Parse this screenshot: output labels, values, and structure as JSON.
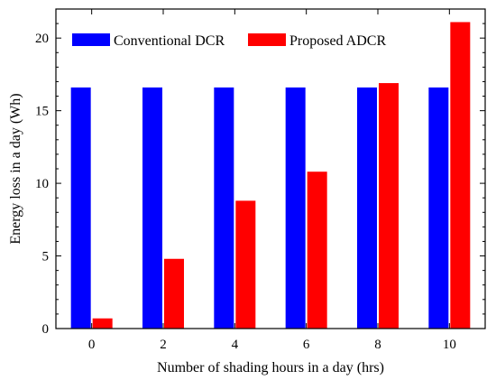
{
  "chart_data": {
    "type": "bar",
    "categories": [
      "0",
      "2",
      "4",
      "6",
      "8",
      "10"
    ],
    "series": [
      {
        "name": "Conventional DCR",
        "values": [
          16.6,
          16.6,
          16.6,
          16.6,
          16.6,
          16.6
        ],
        "color": "#0000ff"
      },
      {
        "name": "Proposed ADCR",
        "values": [
          0.7,
          4.8,
          8.8,
          10.8,
          16.9,
          21.1
        ],
        "color": "#ff0000"
      }
    ],
    "title": "",
    "xlabel": "Number of shading hours in a day (hrs)",
    "ylabel": "Energy loss in a day (Wh)",
    "ylim": [
      0,
      22
    ],
    "yticks": [
      0,
      5,
      10,
      15,
      20
    ],
    "grid": false,
    "legend_position": "top"
  }
}
